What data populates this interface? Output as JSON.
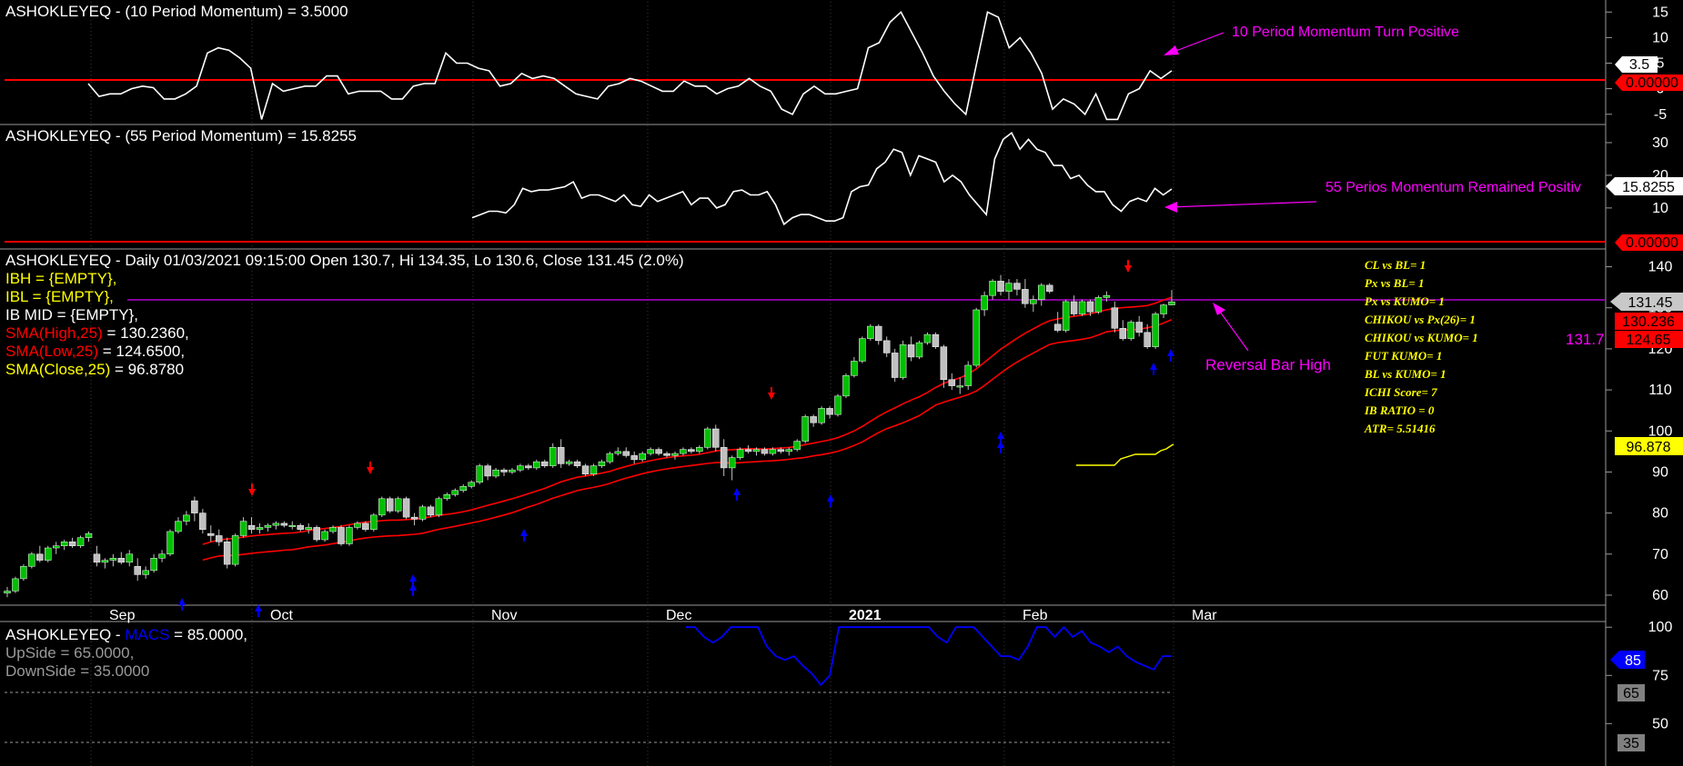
{
  "colors": {
    "background": "#000000",
    "price_line": "#ffffff",
    "zero_line": "#ff0000",
    "sma": "#ff0000",
    "sma_close": "#ffff00",
    "annotation": "#ff00ff",
    "macs": "#0000ff",
    "up_candle": "#00c000",
    "down_candle": "#c0c0c0",
    "arrow_down": "#ff0000",
    "arrow_up": "#0000ff"
  },
  "panels": {
    "mom10": {
      "title": "ASHOKLEYEQ - (10 Period Momentum) = 3.5000",
      "annotation": "10 Period Momentum Turn Positive",
      "ticks": [
        "15",
        "10",
        "5",
        "0",
        "-5"
      ],
      "value_label": "3.5",
      "zero_label": "0.00000"
    },
    "mom55": {
      "title": "ASHOKLEYEQ - (55 Period Momentum) = 15.8255",
      "annotation": "55 Perios Momentum Remained Positiv",
      "ticks": [
        "30",
        "20",
        "10"
      ],
      "value_label": "15.8255",
      "zero_label": "0.00000"
    },
    "price": {
      "header": "ASHOKLEYEQ - Daily 01/03/2021 09:15:00 Open 130.7, Hi 134.35, Lo 130.6, Close 131.45 (2.0%)",
      "ibh": "IBH = {EMPTY},",
      "ibl": "IBL = {EMPTY},",
      "ibmid": "IB MID = {EMPTY},",
      "sma_high_name": "SMA(High,25)",
      "sma_high_val": " = 130.2360,",
      "sma_low_name": "SMA(Low,25)",
      "sma_low_val": " = 124.6500,",
      "sma_close_name": "SMA(Close,25)",
      "sma_close_val": " = 96.8780",
      "annotation": "Reversal Bar High",
      "ticks": [
        "140",
        "130",
        "120",
        "110",
        "100",
        "90",
        "80",
        "70",
        "60"
      ],
      "close_label": "131.45",
      "sma_high_label": "130.236",
      "sma_low_label": "124.65",
      "sma_close_label": "96.878",
      "hline_label": "131.7",
      "ichimoku": [
        "CL vs BL=  1",
        "Px vs BL=  1",
        "Px vs KUMO=  1",
        "CHIKOU vs Px(26)=  1",
        "CHIKOU vs KUMO=  1",
        "FUT KUMO=  1",
        "BL vs KUMO=  1",
        "ICHI Score=  7",
        "IB RATIO = 0",
        "ATR= 5.51416"
      ],
      "months": [
        "Sep",
        "Oct",
        "Nov",
        "Dec",
        "2021",
        "Feb",
        "Mar"
      ]
    },
    "macs": {
      "title_prefix": "ASHOKLEYEQ - ",
      "title_name": "MACS",
      "title_val": " = 85.0000,",
      "upside": "UpSide = 65.0000,",
      "downside": "DownSide = 35.0000",
      "ticks": [
        "100",
        "75",
        "50"
      ],
      "value_label": "85",
      "up_label": "65",
      "down_label": "35"
    }
  },
  "chart_data": [
    {
      "type": "line",
      "title": "ASHOKLEYEQ - (10 Period Momentum) = 3.5000",
      "ylim": [
        -7,
        17
      ],
      "series": [
        {
          "name": "10 Period Momentum",
          "values": [
            1,
            -1.5,
            -1,
            -1,
            0,
            0.5,
            0.2,
            -2,
            -2,
            -1,
            0.5,
            7,
            8,
            7.5,
            6,
            4,
            -6,
            1,
            -0.5,
            0,
            0.5,
            0.5,
            2.5,
            2.5,
            -1,
            -0.5,
            -0.5,
            -0.5,
            -2,
            -2,
            0.5,
            1,
            1,
            7,
            5,
            5,
            4,
            3.5,
            0.5,
            1,
            3,
            2,
            2.5,
            2,
            0.5,
            -1,
            -1.5,
            -2,
            0.5,
            1,
            2,
            1.5,
            0.5,
            -0.5,
            -0.5,
            1.5,
            0.5,
            0.5,
            -1,
            0,
            0.5,
            2,
            0.5,
            -0.5,
            -4,
            -5,
            -1,
            0.5,
            -1,
            -1,
            -0.5,
            0,
            8,
            9,
            13,
            15,
            11,
            7,
            2.5,
            -0.5,
            -3,
            -5,
            5,
            15,
            14,
            8,
            10,
            7,
            3,
            -4,
            -2,
            -3,
            -5,
            -1,
            -6,
            -6,
            -1,
            0,
            3.5,
            2,
            3.5
          ]
        }
      ]
    },
    {
      "type": "line",
      "title": "ASHOKLEYEQ - (55 Period Momentum) = 15.8255",
      "ylim": [
        -2,
        35
      ],
      "series": [
        {
          "name": "55 Period Momentum",
          "values": [
            7,
            8,
            9,
            9,
            8.5,
            11,
            16,
            15,
            15.5,
            15.5,
            16,
            16.5,
            18,
            13,
            14,
            14,
            13,
            12,
            14,
            11,
            10.5,
            14,
            12,
            13,
            14,
            15,
            11,
            13,
            13,
            10,
            11,
            15,
            15.5,
            14,
            14,
            15,
            11,
            5,
            7,
            8,
            8,
            7,
            6,
            6,
            7,
            15,
            16.5,
            17,
            22,
            24,
            28,
            27,
            20,
            26,
            25,
            24,
            18,
            20,
            18,
            14,
            11,
            8,
            25,
            31,
            33,
            28,
            31,
            28,
            27,
            23,
            23,
            19,
            20,
            17,
            15,
            15,
            11,
            9,
            12,
            13,
            12,
            16,
            14,
            15.8
          ]
        }
      ]
    },
    {
      "type": "candlestick",
      "title": "ASHOKLEYEQ - Daily 01/03/2021 09:15:00 Open 130.7, Hi 134.35, Lo 130.6, Close 131.45 (2.0%)",
      "x_labels": [
        "Sep",
        "Oct",
        "Nov",
        "Dec",
        "2021",
        "Feb",
        "Mar"
      ],
      "ylim": [
        58,
        143
      ],
      "candles": [
        [
          60.5,
          62,
          59.5,
          61
        ],
        [
          61,
          64.5,
          60.5,
          64
        ],
        [
          64,
          67.5,
          63.5,
          67
        ],
        [
          67,
          70.5,
          66.5,
          70
        ],
        [
          70,
          72,
          68,
          68.5
        ],
        [
          68.5,
          72,
          68,
          71.5
        ],
        [
          71.5,
          73,
          70,
          72
        ],
        [
          72,
          73.5,
          71,
          73
        ],
        [
          73,
          74,
          71.5,
          72
        ],
        [
          72,
          74.5,
          71.5,
          74
        ],
        [
          74,
          75.5,
          73,
          75
        ],
        [
          70,
          72,
          67,
          68
        ],
        [
          68,
          69,
          66.5,
          68.5
        ],
        [
          68.5,
          70,
          67,
          69
        ],
        [
          69,
          70.5,
          67.5,
          68
        ],
        [
          68,
          71,
          67,
          70
        ],
        [
          67,
          69,
          63.5,
          65
        ],
        [
          65,
          67,
          64,
          66
        ],
        [
          66,
          70,
          65.5,
          69
        ],
        [
          69,
          71,
          68,
          70
        ],
        [
          70,
          76,
          69.5,
          75.5
        ],
        [
          75.5,
          79,
          75,
          78
        ],
        [
          78,
          80.5,
          77,
          79.5
        ],
        [
          83,
          84,
          78,
          80
        ],
        [
          80,
          81,
          75,
          76
        ],
        [
          75,
          77,
          73,
          74.5
        ],
        [
          74.5,
          76,
          72,
          73
        ],
        [
          73,
          74,
          66.5,
          67.5
        ],
        [
          67.5,
          75,
          67,
          74.5
        ],
        [
          74.5,
          79,
          74,
          78
        ],
        [
          77,
          79,
          75,
          76
        ],
        [
          76,
          77.5,
          75,
          76.5
        ],
        [
          76.5,
          77.5,
          75.5,
          77
        ],
        [
          77,
          78,
          76,
          77.5
        ],
        [
          77.5,
          78,
          76.5,
          77
        ],
        [
          77,
          78,
          76,
          77
        ],
        [
          77,
          77.5,
          75.5,
          76
        ],
        [
          76,
          77.5,
          75,
          76.5
        ],
        [
          76.5,
          77,
          73,
          73.5
        ],
        [
          73.5,
          76,
          73,
          75.5
        ],
        [
          75.5,
          77,
          75,
          76.5
        ],
        [
          76.5,
          77,
          72,
          72.5
        ],
        [
          72.5,
          77,
          72,
          76.5
        ],
        [
          76.5,
          78,
          76,
          77.5
        ],
        [
          77.5,
          78,
          75.5,
          76
        ],
        [
          76,
          80,
          75.5,
          79.5
        ],
        [
          79.5,
          84,
          79,
          83.5
        ],
        [
          83.5,
          84,
          80,
          80.5
        ],
        [
          80.5,
          84,
          80,
          83.5
        ],
        [
          83.5,
          84,
          78.5,
          79
        ],
        [
          79,
          80,
          77,
          78.5
        ],
        [
          78.5,
          82,
          78,
          81.5
        ],
        [
          81.5,
          82,
          79,
          79.5
        ],
        [
          79.5,
          84,
          79,
          83.5
        ],
        [
          83.5,
          85,
          83,
          84.5
        ],
        [
          84.5,
          86,
          84,
          85.5
        ],
        [
          85.5,
          87,
          85,
          86.5
        ],
        [
          86.5,
          88,
          86,
          87.5
        ],
        [
          87.5,
          92,
          87,
          91.5
        ],
        [
          91.5,
          92,
          88,
          89
        ],
        [
          89,
          91,
          88.5,
          90.5
        ],
        [
          90.5,
          91,
          89,
          90
        ],
        [
          90,
          91,
          89.5,
          90.5
        ],
        [
          90.5,
          92,
          90,
          91.5
        ],
        [
          91.5,
          92,
          90.5,
          91
        ],
        [
          91,
          93,
          90.5,
          92.5
        ],
        [
          92.5,
          93,
          91,
          91.5
        ],
        [
          91.5,
          97,
          91,
          96
        ],
        [
          96,
          98,
          91,
          92
        ],
        [
          92,
          93,
          91.5,
          92.5
        ],
        [
          92.5,
          93,
          91,
          91.5
        ],
        [
          91.5,
          92,
          89,
          89.5
        ],
        [
          89.5,
          92,
          89,
          91.5
        ],
        [
          91.5,
          93,
          91,
          92.5
        ],
        [
          92.5,
          95,
          92,
          94.5
        ],
        [
          94.5,
          96,
          94,
          95
        ],
        [
          95,
          96,
          93.5,
          94
        ],
        [
          94,
          95,
          92,
          93
        ],
        [
          93,
          95,
          92.5,
          94.5
        ],
        [
          94.5,
          96,
          94,
          95.5
        ],
        [
          95.5,
          96,
          94,
          94.5
        ],
        [
          94.5,
          95,
          93.5,
          94
        ],
        [
          94,
          95,
          93,
          94.5
        ],
        [
          94.5,
          96,
          94,
          95.5
        ],
        [
          95.5,
          96,
          94.5,
          95
        ],
        [
          95,
          96.5,
          94.5,
          96
        ],
        [
          96,
          101,
          95.5,
          100.5
        ],
        [
          100.5,
          101.5,
          95,
          96
        ],
        [
          96,
          98,
          89,
          91
        ],
        [
          91,
          94,
          88,
          93.5
        ],
        [
          93.5,
          96,
          93,
          95.5
        ],
        [
          95.5,
          96.5,
          94.5,
          95
        ],
        [
          95,
          96,
          94,
          95.5
        ],
        [
          95.5,
          96,
          94,
          94.5
        ],
        [
          94.5,
          96,
          94,
          95.5
        ],
        [
          95.5,
          96,
          94.5,
          95
        ],
        [
          95,
          96,
          94,
          95.5
        ],
        [
          95.5,
          98,
          95,
          97.5
        ],
        [
          97.5,
          104,
          97,
          103.5
        ],
        [
          103.5,
          104,
          101,
          102
        ],
        [
          102,
          106,
          101.5,
          105.5
        ],
        [
          105.5,
          106,
          103,
          104
        ],
        [
          104,
          109,
          103.5,
          108.5
        ],
        [
          108.5,
          114,
          108,
          113.5
        ],
        [
          113.5,
          118,
          113,
          117
        ],
        [
          117,
          123,
          116.5,
          122.5
        ],
        [
          122.5,
          126,
          122,
          125.5
        ],
        [
          125.5,
          126,
          121,
          122
        ],
        [
          122,
          123,
          118,
          119
        ],
        [
          119,
          120,
          112,
          113
        ],
        [
          113,
          122,
          112.5,
          121
        ],
        [
          121,
          123,
          117,
          118
        ],
        [
          118,
          122,
          117.5,
          121.5
        ],
        [
          121.5,
          124,
          121,
          123.5
        ],
        [
          123.5,
          124,
          120,
          120.5
        ],
        [
          120.5,
          121,
          110.5,
          112.5
        ],
        [
          112.5,
          114,
          110,
          111
        ],
        [
          111,
          113,
          109,
          111
        ],
        [
          111,
          117,
          110,
          116
        ],
        [
          116,
          130,
          115.5,
          129.5
        ],
        [
          129.5,
          134,
          128,
          133
        ],
        [
          133,
          137,
          132,
          136.5
        ],
        [
          136.5,
          138,
          133,
          134
        ],
        [
          134,
          137,
          132,
          136
        ],
        [
          136,
          137,
          133,
          134.5
        ],
        [
          134.5,
          137,
          130,
          131
        ],
        [
          131,
          133,
          129,
          132
        ],
        [
          132,
          136,
          130.5,
          135.5
        ],
        [
          135.5,
          136,
          133.5,
          134
        ],
        [
          126,
          129,
          124,
          124.5
        ],
        [
          124.5,
          132,
          124,
          131.5
        ],
        [
          131.5,
          133,
          128,
          128.5
        ],
        [
          128.5,
          132,
          128,
          131.5
        ],
        [
          131.5,
          132,
          128,
          129
        ],
        [
          129,
          133,
          128.5,
          132.5
        ],
        [
          132.5,
          134,
          131.5,
          133
        ],
        [
          130,
          131.5,
          124,
          125
        ],
        [
          125,
          127,
          122,
          122.5
        ],
        [
          122.5,
          127,
          122,
          126.5
        ],
        [
          126.5,
          128,
          123,
          124
        ],
        [
          124,
          126,
          120,
          120.5
        ],
        [
          120.5,
          129,
          120,
          128.5
        ],
        [
          128.5,
          131,
          127.5,
          130.7
        ],
        [
          130.7,
          134.35,
          130.6,
          131.45
        ]
      ],
      "series": [
        {
          "name": "SMA(High,25)",
          "last": 130.236
        },
        {
          "name": "SMA(Low,25)",
          "last": 124.65
        },
        {
          "name": "SMA(Close,25)",
          "last": 96.878
        }
      ]
    },
    {
      "type": "line",
      "title": "MACS",
      "ylim": [
        28,
        102
      ],
      "series": [
        {
          "name": "MACS",
          "values": [
            100,
            100,
            95,
            92,
            95,
            100,
            100,
            100,
            100,
            90,
            85,
            83,
            85,
            80,
            76,
            70,
            75,
            100,
            100,
            100,
            100,
            100,
            100,
            100,
            100,
            100,
            100,
            100,
            95,
            92,
            100,
            100,
            100,
            95,
            90,
            85,
            85,
            83,
            90,
            100,
            100,
            95,
            100,
            95,
            98,
            92,
            90,
            87,
            90,
            85,
            82,
            80,
            78,
            85,
            85
          ]
        }
      ]
    }
  ]
}
